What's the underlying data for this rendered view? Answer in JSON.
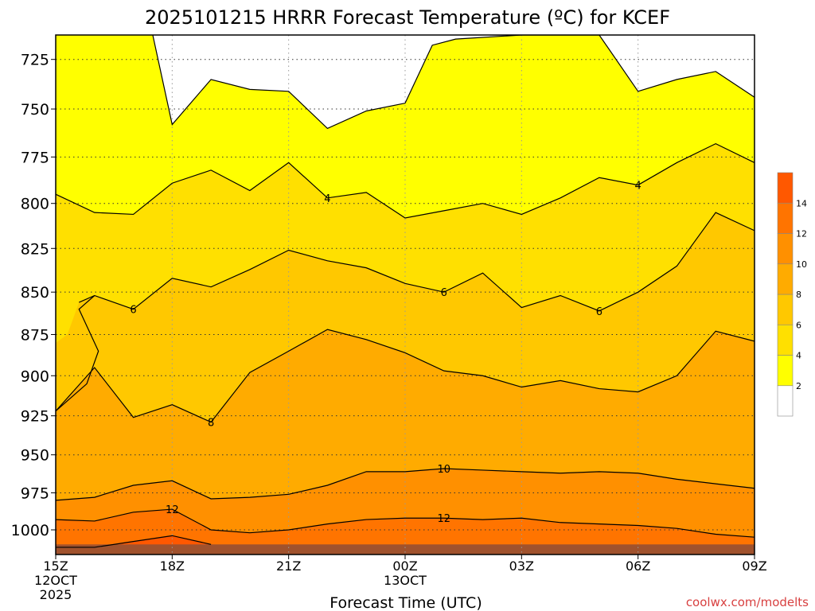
{
  "chart_data": {
    "type": "heatmap",
    "title": "2025101215 HRRR Forecast Temperature (ºC) for KCEF",
    "xlabel": "Forecast Time (UTC)",
    "ylabel": "",
    "credit": "coolwx.com/modelts",
    "x_ticks": [
      {
        "hour": 0,
        "lines": [
          "15Z",
          "12OCT",
          "2025"
        ]
      },
      {
        "hour": 3,
        "lines": [
          "18Z"
        ]
      },
      {
        "hour": 6,
        "lines": [
          "21Z"
        ]
      },
      {
        "hour": 9,
        "lines": [
          "00Z",
          "13OCT"
        ]
      },
      {
        "hour": 12,
        "lines": [
          "03Z"
        ]
      },
      {
        "hour": 15,
        "lines": [
          "06Z"
        ]
      },
      {
        "hour": 18,
        "lines": [
          "09Z"
        ]
      }
    ],
    "y_ticks": [
      725,
      750,
      775,
      800,
      825,
      850,
      875,
      900,
      925,
      950,
      975,
      1000
    ],
    "xlim": [
      0,
      18
    ],
    "ylim": [
      713,
      1017
    ],
    "y_scale": "log-pressure",
    "grid": true,
    "legend": "colorbar-right",
    "colorbar": {
      "levels": [
        2,
        4,
        6,
        8,
        10,
        12,
        14
      ],
      "colors": [
        "#ffffff",
        "#ffff00",
        "#ffe000",
        "#ffc800",
        "#ffab00",
        "#ff9000",
        "#ff7400",
        "#ff5800"
      ]
    },
    "bands": [
      {
        "color": "#ffff00",
        "range": "2-4"
      },
      {
        "color": "#ffe000",
        "range": "4-6"
      },
      {
        "color": "#ffc800",
        "range": "6-8"
      },
      {
        "color": "#ffab00",
        "range": "8-10"
      },
      {
        "color": "#ff9000",
        "range": "10-12"
      },
      {
        "color": "#ff7400",
        "range": "12-14"
      }
    ],
    "contours": [
      {
        "level": 2,
        "points": [
          [
            2.5,
            713
          ],
          [
            3.0,
            758
          ],
          [
            4.0,
            735
          ],
          [
            5.0,
            740
          ],
          [
            6.0,
            741
          ],
          [
            7.0,
            760
          ],
          [
            8.0,
            751
          ],
          [
            9.0,
            747
          ],
          [
            9.7,
            718
          ],
          [
            10.3,
            715
          ],
          [
            12.0,
            713
          ],
          [
            14.0,
            713
          ],
          [
            15.0,
            741
          ],
          [
            16.0,
            735
          ],
          [
            17.0,
            731
          ],
          [
            18.0,
            744
          ]
        ]
      },
      {
        "level": 4,
        "points": [
          [
            0,
            795
          ],
          [
            1.0,
            805
          ],
          [
            2.0,
            806
          ],
          [
            3.0,
            789
          ],
          [
            4.0,
            782
          ],
          [
            5.0,
            793
          ],
          [
            6.0,
            778
          ],
          [
            7.0,
            797
          ],
          [
            8.0,
            794
          ],
          [
            9.0,
            808
          ],
          [
            10.0,
            804
          ],
          [
            11.0,
            800
          ],
          [
            12.0,
            806
          ],
          [
            13.0,
            797
          ],
          [
            14.0,
            786
          ],
          [
            15.0,
            790
          ],
          [
            16.0,
            778
          ],
          [
            17.0,
            768
          ],
          [
            18.0,
            778
          ]
        ]
      },
      {
        "level": 6,
        "points": [
          [
            0.6,
            856
          ],
          [
            1.0,
            852
          ],
          [
            2.0,
            860
          ],
          [
            3.0,
            842
          ],
          [
            4.0,
            847
          ],
          [
            5.0,
            837
          ],
          [
            6.0,
            826
          ],
          [
            7.0,
            832
          ],
          [
            8.0,
            836
          ],
          [
            9.0,
            845
          ],
          [
            10.0,
            850
          ],
          [
            11.0,
            839
          ],
          [
            12.0,
            859
          ],
          [
            13.0,
            852
          ],
          [
            14.0,
            861
          ],
          [
            15.0,
            850
          ],
          [
            16.0,
            835
          ],
          [
            17.0,
            805
          ],
          [
            18.0,
            815
          ]
        ]
      },
      {
        "level": 8,
        "points": [
          [
            0,
            922
          ],
          [
            1.0,
            895
          ],
          [
            2.0,
            926
          ],
          [
            3.0,
            918
          ],
          [
            4.0,
            929
          ],
          [
            5.0,
            898
          ],
          [
            6.0,
            885
          ],
          [
            7.0,
            872
          ],
          [
            8.0,
            878
          ],
          [
            9.0,
            886
          ],
          [
            10.0,
            897
          ],
          [
            11.0,
            900
          ],
          [
            12.0,
            907
          ],
          [
            13.0,
            903
          ],
          [
            14.0,
            908
          ],
          [
            15.0,
            910
          ],
          [
            16.0,
            900
          ],
          [
            17.0,
            873
          ],
          [
            18.0,
            879
          ]
        ]
      },
      {
        "level": 10,
        "points": [
          [
            0,
            980
          ],
          [
            1.0,
            978
          ],
          [
            2.0,
            970
          ],
          [
            3.0,
            967
          ],
          [
            4.0,
            979
          ],
          [
            5.0,
            978
          ],
          [
            6.0,
            976
          ],
          [
            7.0,
            970
          ],
          [
            8.0,
            961
          ],
          [
            9.0,
            961
          ],
          [
            10.0,
            959
          ],
          [
            11.0,
            960
          ],
          [
            12.0,
            961
          ],
          [
            13.0,
            962
          ],
          [
            14.0,
            961
          ],
          [
            15.0,
            962
          ],
          [
            16.0,
            966
          ],
          [
            17.0,
            969
          ],
          [
            18.0,
            972
          ]
        ]
      },
      {
        "level": 12,
        "points": [
          [
            0,
            993
          ],
          [
            1.0,
            994
          ],
          [
            2.0,
            988
          ],
          [
            3.0,
            986
          ],
          [
            4.0,
            1000
          ],
          [
            5.0,
            1002
          ],
          [
            6.0,
            1000
          ],
          [
            7.0,
            996
          ],
          [
            8.0,
            993
          ],
          [
            9.0,
            992
          ],
          [
            10.0,
            992
          ],
          [
            11.0,
            993
          ],
          [
            12.0,
            992
          ],
          [
            13.0,
            995
          ],
          [
            14.0,
            996
          ],
          [
            15.0,
            997
          ],
          [
            16.0,
            999
          ],
          [
            17.0,
            1003
          ],
          [
            18.0,
            1005
          ]
        ]
      },
      {
        "level": 14,
        "points": [
          [
            0,
            1012
          ],
          [
            1.0,
            1012
          ],
          [
            2.0,
            1008
          ],
          [
            3.0,
            1004
          ],
          [
            4.0,
            1010
          ]
        ]
      }
    ],
    "contour_labels": [
      {
        "text": "4",
        "x": 7.0,
        "y": 797
      },
      {
        "text": "4",
        "x": 15.0,
        "y": 790
      },
      {
        "text": "6",
        "x": 2.0,
        "y": 860
      },
      {
        "text": "6",
        "x": 10.0,
        "y": 850
      },
      {
        "text": "6",
        "x": 14.0,
        "y": 861
      },
      {
        "text": "8",
        "x": 4.0,
        "y": 929
      },
      {
        "text": "10",
        "x": 10.0,
        "y": 959
      },
      {
        "text": "12",
        "x": 3.0,
        "y": 986
      },
      {
        "text": "12",
        "x": 10.0,
        "y": 992
      }
    ],
    "ground_color": "#a0522d"
  }
}
